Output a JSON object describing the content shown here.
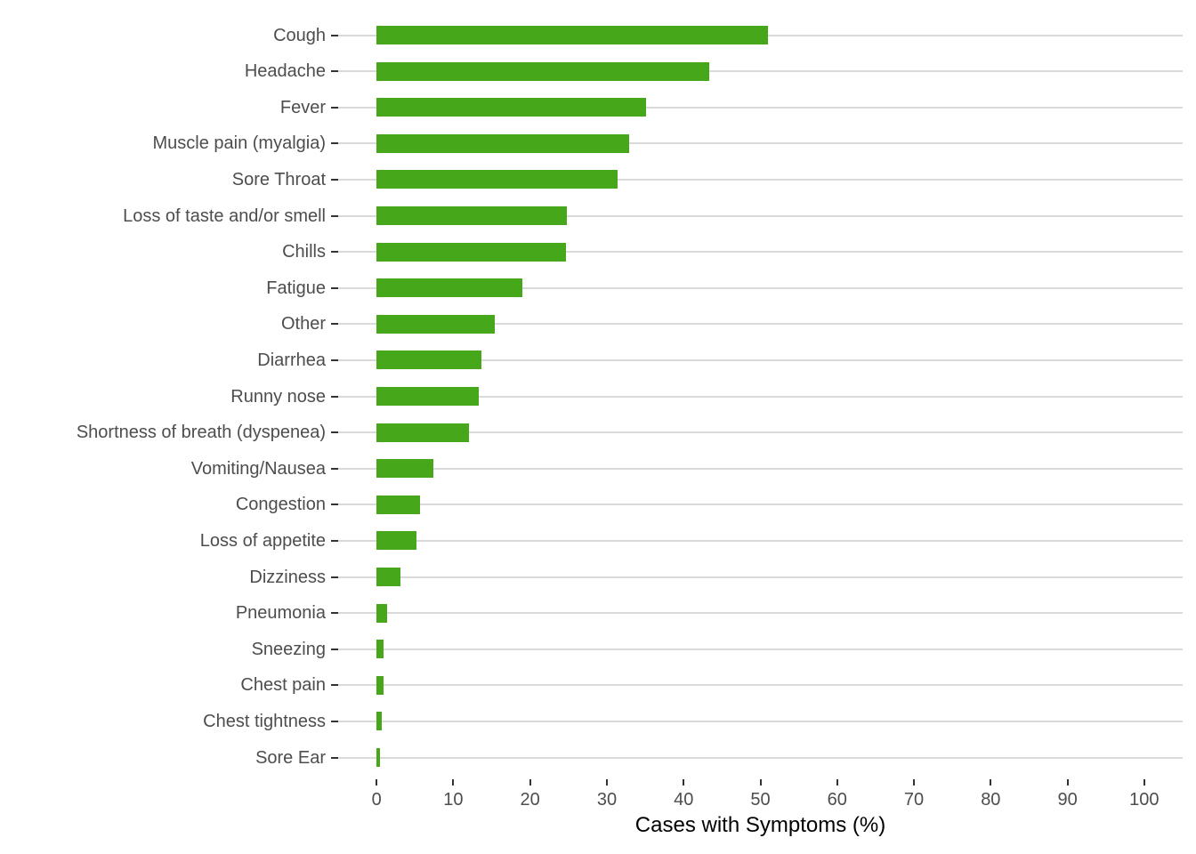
{
  "chart_data": {
    "type": "bar",
    "orientation": "horizontal",
    "title": "",
    "xlabel": "Cases with Symptoms (%)",
    "ylabel": "",
    "xlim": [
      0,
      100
    ],
    "x_ticks": [
      0,
      10,
      20,
      30,
      40,
      50,
      60,
      70,
      80,
      90,
      100
    ],
    "grid": "horizontal category gridlines only",
    "legend": "none",
    "categories": [
      "Cough",
      "Headache",
      "Fever",
      "Muscle pain (myalgia)",
      "Sore Throat",
      "Loss of taste and/or smell",
      "Chills",
      "Fatigue",
      "Other",
      "Diarrhea",
      "Runny nose",
      "Shortness of breath (dyspenea)",
      "Vomiting/Nausea",
      "Congestion",
      "Loss of appetite",
      "Dizziness",
      "Pneumonia",
      "Sneezing",
      "Chest pain",
      "Chest tightness",
      "Sore Ear"
    ],
    "values": [
      51.0,
      43.3,
      35.1,
      32.9,
      31.4,
      24.8,
      24.7,
      19.0,
      15.4,
      13.7,
      13.3,
      12.0,
      7.4,
      5.7,
      5.2,
      3.1,
      1.4,
      0.9,
      0.9,
      0.7,
      0.5
    ],
    "colors": {
      "bar": "#46A71B",
      "gridline": "#D9D9D9",
      "axis_text": "#4D4D4D",
      "tick": "#333333",
      "axis_title": "#000000",
      "background": "#FFFFFF"
    }
  }
}
